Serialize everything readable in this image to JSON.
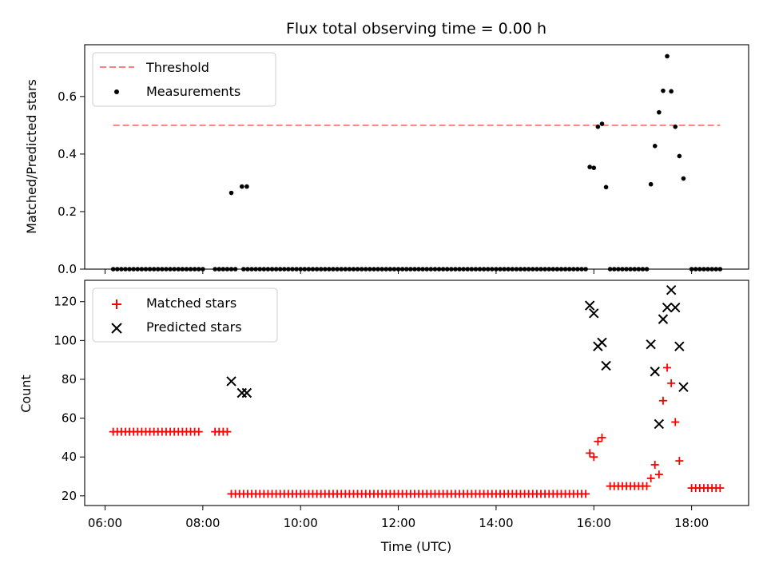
{
  "chart_data": [
    {
      "type": "scatter",
      "title": "Flux total observing time = 0.00 h",
      "ylabel": "Matched/Predicted stars",
      "xlabel": "",
      "xlim": [
        "05:35",
        "19:10"
      ],
      "ylim": [
        0,
        0.78
      ],
      "yticks": [
        0,
        0.2,
        0.4,
        0.6
      ],
      "ytick_labels": [
        "0.0",
        "0.2",
        "0.4",
        "0.6"
      ],
      "grid": false,
      "legend": "top-left",
      "threshold": {
        "name": "Threshold",
        "value": 0.5,
        "x_start": "06:10",
        "x_end": "18:35",
        "color": "#ff7f7f"
      },
      "series": [
        {
          "name": "Measurements",
          "color": "#000000",
          "marker": "dot",
          "x": [
            "06:10",
            "06:15",
            "06:20",
            "06:25",
            "06:30",
            "06:35",
            "06:40",
            "06:45",
            "06:50",
            "06:55",
            "07:00",
            "07:05",
            "07:10",
            "07:15",
            "07:20",
            "07:25",
            "07:30",
            "07:35",
            "07:40",
            "07:45",
            "07:50",
            "07:55",
            "08:00",
            "08:15",
            "08:20",
            "08:25",
            "08:30",
            "08:35",
            "08:40",
            "08:50",
            "08:55",
            "09:00",
            "09:05",
            "09:10",
            "09:15",
            "09:20",
            "09:25",
            "09:30",
            "09:35",
            "09:40",
            "09:45",
            "09:50",
            "09:55",
            "10:00",
            "10:05",
            "10:10",
            "10:15",
            "10:20",
            "10:25",
            "10:30",
            "10:35",
            "10:40",
            "10:45",
            "10:50",
            "10:55",
            "11:00",
            "11:05",
            "11:10",
            "11:15",
            "11:20",
            "11:25",
            "11:30",
            "11:35",
            "11:40",
            "11:45",
            "11:50",
            "11:55",
            "12:00",
            "12:05",
            "12:10",
            "12:15",
            "12:20",
            "12:25",
            "12:30",
            "12:35",
            "12:40",
            "12:45",
            "12:50",
            "12:55",
            "13:00",
            "13:05",
            "13:10",
            "13:15",
            "13:20",
            "13:25",
            "13:30",
            "13:35",
            "13:40",
            "13:45",
            "13:50",
            "13:55",
            "14:00",
            "14:05",
            "14:10",
            "14:15",
            "14:20",
            "14:25",
            "14:30",
            "14:35",
            "14:40",
            "14:45",
            "14:50",
            "14:55",
            "15:00",
            "15:05",
            "15:10",
            "15:15",
            "15:20",
            "15:25",
            "15:30",
            "15:35",
            "15:40",
            "15:45",
            "15:50",
            "16:20",
            "16:25",
            "16:30",
            "16:35",
            "16:40",
            "16:45",
            "16:50",
            "16:55",
            "17:00",
            "17:05",
            "18:00",
            "18:05",
            "18:10",
            "18:15",
            "18:20",
            "18:25",
            "18:30",
            "18:35",
            "08:35",
            "08:48",
            "08:54",
            "15:55",
            "16:00",
            "16:05",
            "16:10",
            "16:15",
            "17:10",
            "17:15",
            "17:20",
            "17:25",
            "17:30",
            "17:35",
            "17:40",
            "17:45",
            "17:50"
          ],
          "y": [
            0,
            0,
            0,
            0,
            0,
            0,
            0,
            0,
            0,
            0,
            0,
            0,
            0,
            0,
            0,
            0,
            0,
            0,
            0,
            0,
            0,
            0,
            0,
            0,
            0,
            0,
            0,
            0,
            0,
            0,
            0,
            0,
            0,
            0,
            0,
            0,
            0,
            0,
            0,
            0,
            0,
            0,
            0,
            0,
            0,
            0,
            0,
            0,
            0,
            0,
            0,
            0,
            0,
            0,
            0,
            0,
            0,
            0,
            0,
            0,
            0,
            0,
            0,
            0,
            0,
            0,
            0,
            0,
            0,
            0,
            0,
            0,
            0,
            0,
            0,
            0,
            0,
            0,
            0,
            0,
            0,
            0,
            0,
            0,
            0,
            0,
            0,
            0,
            0,
            0,
            0,
            0,
            0,
            0,
            0,
            0,
            0,
            0,
            0,
            0,
            0,
            0,
            0,
            0,
            0,
            0,
            0,
            0,
            0,
            0,
            0,
            0,
            0,
            0,
            0,
            0,
            0,
            0,
            0,
            0,
            0,
            0,
            0,
            0,
            0,
            0,
            0,
            0,
            0,
            0,
            0,
            0,
            0.265,
            0.287,
            0.287,
            0.355,
            0.352,
            0.495,
            0.505,
            0.285,
            0.295,
            0.428,
            0.545,
            0.62,
            0.74,
            0.618,
            0.495,
            0.393,
            0.315
          ]
        }
      ]
    },
    {
      "type": "scatter",
      "title": "",
      "xlabel": "Time (UTC)",
      "ylabel": "Count",
      "xlim": [
        "05:35",
        "19:10"
      ],
      "ylim": [
        15,
        131
      ],
      "xticks": [
        "06:00",
        "08:00",
        "10:00",
        "12:00",
        "14:00",
        "16:00",
        "18:00"
      ],
      "yticks": [
        20,
        40,
        60,
        80,
        100,
        120
      ],
      "grid": false,
      "legend": "top-left",
      "series": [
        {
          "name": "Matched stars",
          "color": "#ff0000",
          "marker": "plus",
          "x": [
            "06:10",
            "06:15",
            "06:20",
            "06:25",
            "06:30",
            "06:35",
            "06:40",
            "06:45",
            "06:50",
            "06:55",
            "07:00",
            "07:05",
            "07:10",
            "07:15",
            "07:20",
            "07:25",
            "07:30",
            "07:35",
            "07:40",
            "07:45",
            "07:50",
            "07:55",
            "08:15",
            "08:20",
            "08:25",
            "08:30",
            "08:35",
            "08:40",
            "08:45",
            "08:50",
            "08:55",
            "09:00",
            "09:05",
            "09:10",
            "09:15",
            "09:20",
            "09:25",
            "09:30",
            "09:35",
            "09:40",
            "09:45",
            "09:50",
            "09:55",
            "10:00",
            "10:05",
            "10:10",
            "10:15",
            "10:20",
            "10:25",
            "10:30",
            "10:35",
            "10:40",
            "10:45",
            "10:50",
            "10:55",
            "11:00",
            "11:05",
            "11:10",
            "11:15",
            "11:20",
            "11:25",
            "11:30",
            "11:35",
            "11:40",
            "11:45",
            "11:50",
            "11:55",
            "12:00",
            "12:05",
            "12:10",
            "12:15",
            "12:20",
            "12:25",
            "12:30",
            "12:35",
            "12:40",
            "12:45",
            "12:50",
            "12:55",
            "13:00",
            "13:05",
            "13:10",
            "13:15",
            "13:20",
            "13:25",
            "13:30",
            "13:35",
            "13:40",
            "13:45",
            "13:50",
            "13:55",
            "14:00",
            "14:05",
            "14:10",
            "14:15",
            "14:20",
            "14:25",
            "14:30",
            "14:35",
            "14:40",
            "14:45",
            "14:50",
            "14:55",
            "15:00",
            "15:05",
            "15:10",
            "15:15",
            "15:20",
            "15:25",
            "15:30",
            "15:35",
            "15:40",
            "15:45",
            "15:50",
            "16:20",
            "16:25",
            "16:30",
            "16:35",
            "16:40",
            "16:45",
            "16:50",
            "16:55",
            "17:00",
            "17:05",
            "18:00",
            "18:05",
            "18:10",
            "18:15",
            "18:20",
            "18:25",
            "18:30",
            "18:35",
            "15:55",
            "16:00",
            "16:05",
            "16:10",
            "17:10",
            "17:15",
            "17:20",
            "17:25",
            "17:30",
            "17:35",
            "17:40",
            "17:45"
          ],
          "y": [
            53,
            53,
            53,
            53,
            53,
            53,
            53,
            53,
            53,
            53,
            53,
            53,
            53,
            53,
            53,
            53,
            53,
            53,
            53,
            53,
            53,
            53,
            53,
            53,
            53,
            53,
            21,
            21,
            21,
            21,
            21,
            21,
            21,
            21,
            21,
            21,
            21,
            21,
            21,
            21,
            21,
            21,
            21,
            21,
            21,
            21,
            21,
            21,
            21,
            21,
            21,
            21,
            21,
            21,
            21,
            21,
            21,
            21,
            21,
            21,
            21,
            21,
            21,
            21,
            21,
            21,
            21,
            21,
            21,
            21,
            21,
            21,
            21,
            21,
            21,
            21,
            21,
            21,
            21,
            21,
            21,
            21,
            21,
            21,
            21,
            21,
            21,
            21,
            21,
            21,
            21,
            21,
            21,
            21,
            21,
            21,
            21,
            21,
            21,
            21,
            21,
            21,
            21,
            21,
            21,
            21,
            21,
            21,
            21,
            21,
            21,
            21,
            21,
            21,
            25,
            25,
            25,
            25,
            25,
            25,
            25,
            25,
            25,
            25,
            24,
            24,
            24,
            24,
            24,
            24,
            24,
            24,
            42,
            40,
            48,
            50,
            29,
            36,
            31,
            69,
            86,
            78,
            58,
            38
          ]
        },
        {
          "name": "Predicted stars",
          "color": "#000000",
          "marker": "x",
          "x": [
            "08:35",
            "08:48",
            "08:54",
            "15:55",
            "16:00",
            "16:05",
            "16:10",
            "16:15",
            "17:10",
            "17:15",
            "17:20",
            "17:25",
            "17:30",
            "17:35",
            "17:40",
            "17:45",
            "17:50"
          ],
          "y": [
            79,
            73,
            73,
            118,
            114,
            97,
            99,
            87,
            98,
            84,
            57,
            111,
            117,
            126,
            117,
            97,
            76
          ]
        }
      ]
    }
  ]
}
